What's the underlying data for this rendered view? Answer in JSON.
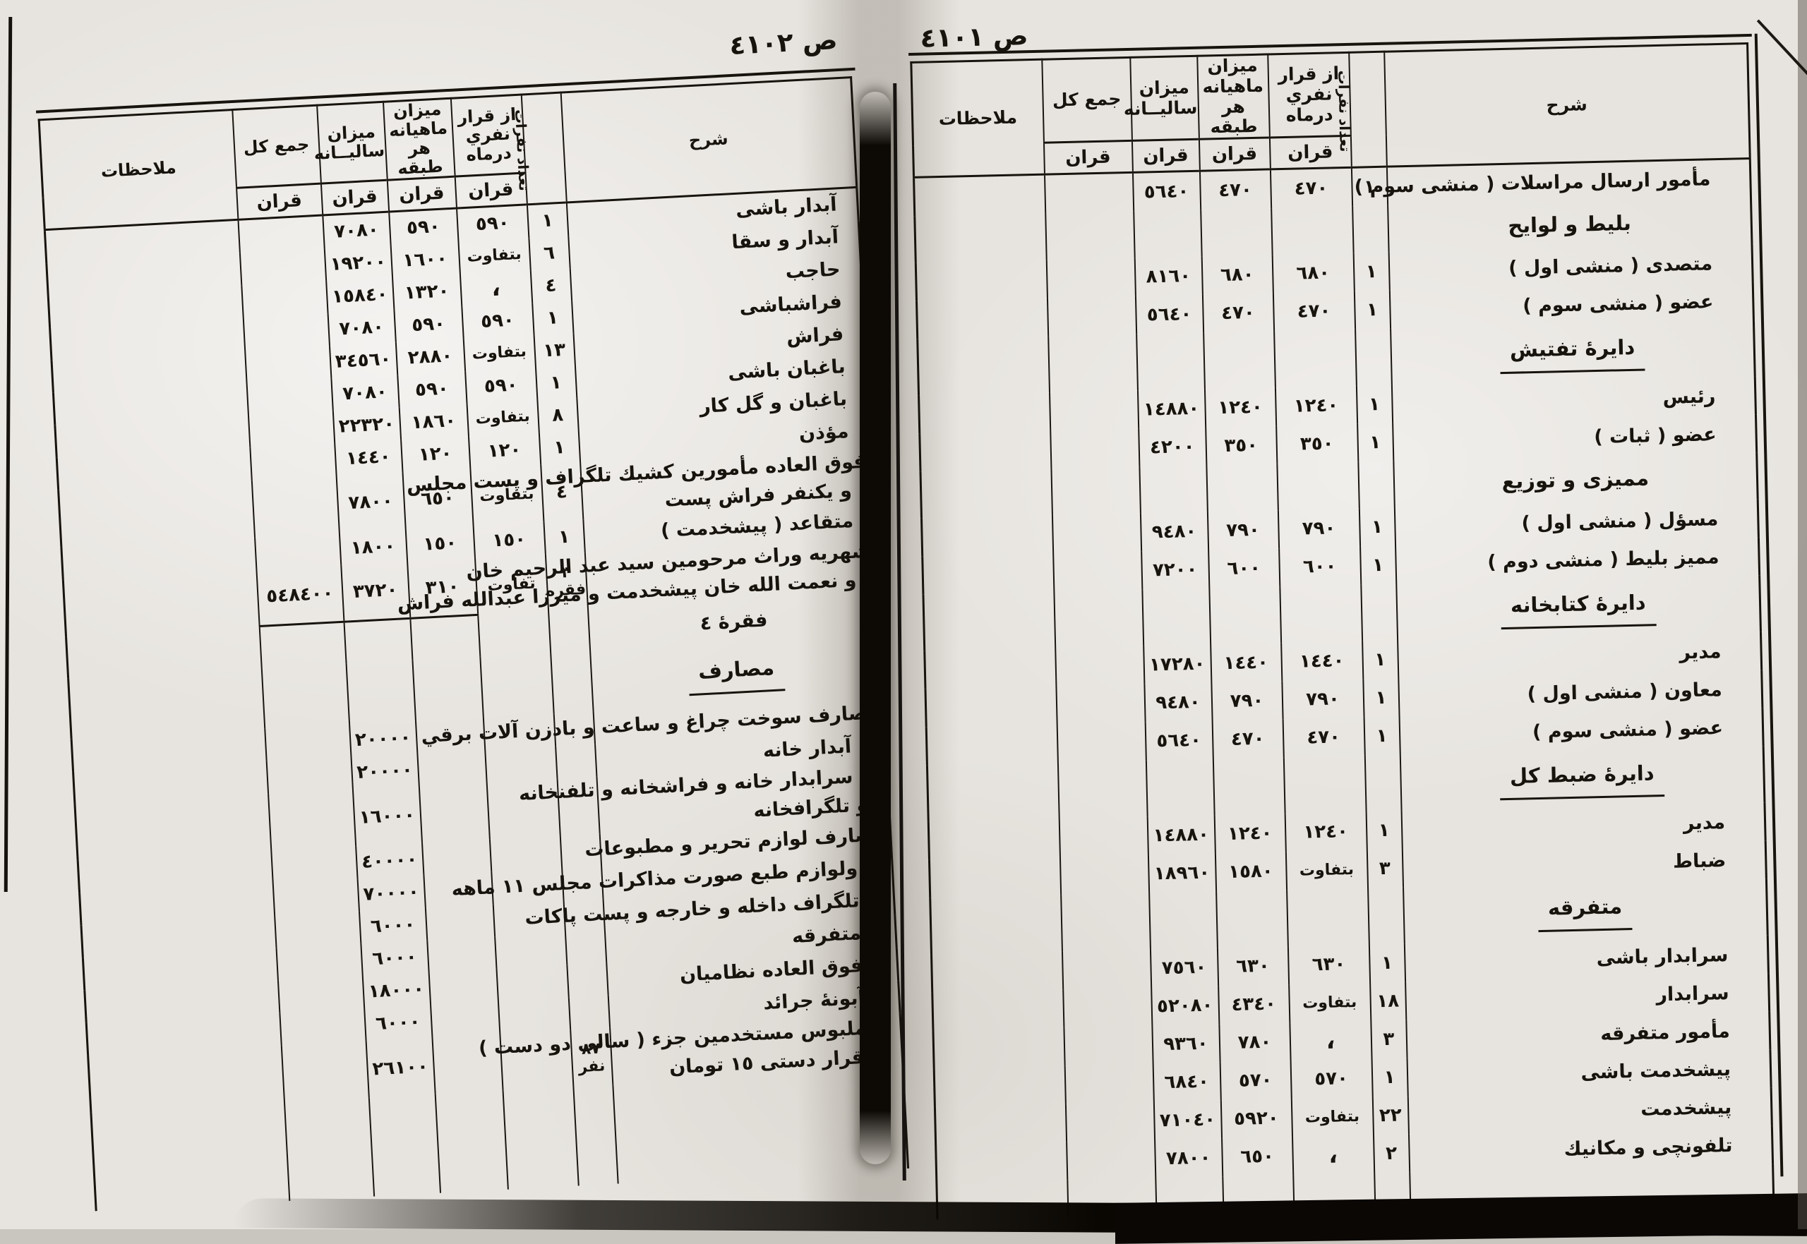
{
  "document": {
    "left_page_label": "ص ٤١٠٢",
    "right_page_label": "ص ٤١٠١"
  },
  "headers": {
    "desc": "شرح",
    "count": "تعداد نفرات",
    "per_person": "از قرار\nنفري درماه",
    "monthly": "ميزان ماهيانه\nهر طبقه",
    "annual": "ميزان\nساليــانه",
    "total": "جمع كل",
    "notes": "ملاحظات",
    "unit": "قران"
  },
  "page_right": {
    "rows": [
      {
        "type": "entry",
        "desc": "مأمور ارسال مراسلات ( منشى سوم )",
        "count": "١",
        "per": "٤٧٠",
        "monthly": "٤٧٠",
        "annual": "٥٦٤٠"
      },
      {
        "type": "section",
        "desc": "بليط و لوايح"
      },
      {
        "type": "entry",
        "desc": "متصدى ( منشى اول )",
        "count": "١",
        "per": "٦٨٠",
        "monthly": "٦٨٠",
        "annual": "٨١٦٠"
      },
      {
        "type": "entry",
        "desc": "عضو ( منشى سوم )",
        "count": "١",
        "per": "٤٧٠",
        "monthly": "٤٧٠",
        "annual": "٥٦٤٠"
      },
      {
        "type": "section",
        "desc": "دايرهٔ تفتيش",
        "underline": true
      },
      {
        "type": "entry",
        "desc": "رئيس",
        "count": "١",
        "per": "١٢٤٠",
        "monthly": "١٢٤٠",
        "annual": "١٤٨٨٠"
      },
      {
        "type": "entry",
        "desc": "عضو ( ثبات )",
        "count": "١",
        "per": "٣٥٠",
        "monthly": "٣٥٠",
        "annual": "٤٢٠٠"
      },
      {
        "type": "section",
        "desc": "مميزى و توزيع"
      },
      {
        "type": "entry",
        "desc": "مسؤل ( منشى اول )",
        "count": "١",
        "per": "٧٩٠",
        "monthly": "٧٩٠",
        "annual": "٩٤٨٠"
      },
      {
        "type": "entry",
        "desc": "مميز بليط ( منشى دوم )",
        "count": "١",
        "per": "٦٠٠",
        "monthly": "٦٠٠",
        "annual": "٧٢٠٠"
      },
      {
        "type": "section",
        "desc": "دايرهٔ كتابخانه",
        "underline": true
      },
      {
        "type": "entry",
        "desc": "مدير",
        "count": "١",
        "per": "١٤٤٠",
        "monthly": "١٤٤٠",
        "annual": "١٧٢٨٠"
      },
      {
        "type": "entry",
        "desc": "معاون ( منشى اول )",
        "count": "١",
        "per": "٧٩٠",
        "monthly": "٧٩٠",
        "annual": "٩٤٨٠"
      },
      {
        "type": "entry",
        "desc": "عضو ( منشى سوم )",
        "count": "١",
        "per": "٤٧٠",
        "monthly": "٤٧٠",
        "annual": "٥٦٤٠"
      },
      {
        "type": "section",
        "desc": "دايرهٔ ضبط كل",
        "underline": true
      },
      {
        "type": "entry",
        "desc": "مدير",
        "count": "١",
        "per": "١٢٤٠",
        "monthly": "١٢٤٠",
        "annual": "١٤٨٨٠"
      },
      {
        "type": "entry",
        "desc": "ضباط",
        "count": "٣",
        "per": "بتفاوت",
        "monthly": "١٥٨٠",
        "annual": "١٨٩٦٠"
      },
      {
        "type": "section",
        "desc": "متفرقه",
        "underline": true
      },
      {
        "type": "entry",
        "desc": "سرابدار باشى",
        "count": "١",
        "per": "٦٣٠",
        "monthly": "٦٣٠",
        "annual": "٧٥٦٠"
      },
      {
        "type": "entry",
        "desc": "سرابدار",
        "count": "١٨",
        "per": "بتفاوت",
        "monthly": "٤٣٤٠",
        "annual": "٥٢٠٨٠"
      },
      {
        "type": "entry",
        "desc": "مأمور متفرقه",
        "count": "٣",
        "per": "،",
        "monthly": "٧٨٠",
        "annual": "٩٣٦٠"
      },
      {
        "type": "entry",
        "desc": "پيشخدمت باشى",
        "count": "١",
        "per": "٥٧٠",
        "monthly": "٥٧٠",
        "annual": "٦٨٤٠"
      },
      {
        "type": "entry",
        "desc": "پيشخدمت",
        "count": "٢٢",
        "per": "بتفاوت",
        "monthly": "٥٩٢٠",
        "annual": "٧١٠٤٠"
      },
      {
        "type": "entry",
        "desc": "تلفونچى و مكانيك",
        "count": "٢",
        "per": "،",
        "monthly": "٦٥٠",
        "annual": "٧٨٠٠"
      },
      {
        "type": "filler"
      }
    ]
  },
  "page_left": {
    "rows": [
      {
        "type": "entry",
        "desc": "آبدار باشى",
        "count": "١",
        "per": "٥٩٠",
        "monthly": "٥٩٠",
        "annual": "٧٠٨٠"
      },
      {
        "type": "entry",
        "desc": "آبدار و سقا",
        "count": "٦",
        "per": "بتفاوت",
        "monthly": "١٦٠٠",
        "annual": "١٩٢٠٠"
      },
      {
        "type": "entry",
        "desc": "حاجب",
        "count": "٤",
        "per": "،",
        "monthly": "١٣٢٠",
        "annual": "١٥٨٤٠"
      },
      {
        "type": "entry",
        "desc": "فراشباشى",
        "count": "١",
        "per": "٥٩٠",
        "monthly": "٥٩٠",
        "annual": "٧٠٨٠"
      },
      {
        "type": "entry",
        "desc": "فراش",
        "count": "١٣",
        "per": "بتفاوت",
        "monthly": "٢٨٨٠",
        "annual": "٣٤٥٦٠"
      },
      {
        "type": "entry",
        "desc": "باغبان باشى",
        "count": "١",
        "per": "٥٩٠",
        "monthly": "٥٩٠",
        "annual": "٧٠٨٠"
      },
      {
        "type": "entry",
        "desc": "باغبان و گل كار",
        "count": "٨",
        "per": "بتفاوت",
        "monthly": "١٨٦٠",
        "annual": "٢٢٣٢٠"
      },
      {
        "type": "entry",
        "desc": "مؤذن",
        "count": "١",
        "per": "١٢٠",
        "monthly": "١٢٠",
        "annual": "١٤٤٠"
      },
      {
        "type": "entry",
        "desc": "فوق العاده مأمورين كشيك تلگراف و پست مجلس",
        "desc2": "و يكنفر فراش پست",
        "flush": true,
        "count": "٤",
        "per": "بتفاوت",
        "monthly": "٦٥٠",
        "annual": "٧٨٠٠"
      },
      {
        "type": "entry",
        "desc": "متقاعد ( پيشخدمت )",
        "count": "١",
        "per": "١٥٠",
        "monthly": "١٥٠",
        "annual": "١٨٠٠"
      },
      {
        "type": "entry",
        "desc": "شهريه وراث مرحومين سيد عبد الرحيم خان",
        "desc2": "و نعمت الله خان پيشخدمت و ميرزا عبدالله فراش",
        "flush": true,
        "count": "٣ فقره",
        "per": "تفاوت",
        "monthly": "٣١٠",
        "annual": "٣٧٢٠",
        "total": "٥٤٨٤٠٠",
        "sumline": true
      },
      {
        "type": "center",
        "desc": "فقرهٔ ٤"
      },
      {
        "type": "section",
        "desc": "مصارف",
        "underline": true
      },
      {
        "type": "entry",
        "desc": "مصارف سوخت چراغ و ساعت و بادزن آلات برقي",
        "flush": true,
        "annual": "٢٠٠٠٠"
      },
      {
        "type": "entry",
        "desc": "،  آبدار خانه",
        "annual": "٢٠٠٠٠"
      },
      {
        "type": "entry",
        "desc": "،  سرابدار خانه و فراشخانه و تلفنخانه",
        "desc2": "و تلگرافخانه",
        "annual": "١٦٠٠٠"
      },
      {
        "type": "entry",
        "desc": "مصارف لوازم تحرير و مطبوعات",
        "flush": true,
        "annual": "٤٠٠٠٠"
      },
      {
        "type": "entry",
        "desc": "،  ولوازم طبع صورت مذاكرات مجلس ١١ ماهه",
        "annual": "٧٠٠٠٠"
      },
      {
        "type": "entry",
        "desc": "،  تلگراف داخله و خارجه و پست پاكات",
        "annual": "٦٠٠٠"
      },
      {
        "type": "entry",
        "desc": "،  متفرقه",
        "annual": "٦٠٠٠"
      },
      {
        "type": "entry",
        "desc": "،  فوق العاده نظاميان",
        "annual": "١٨٠٠٠"
      },
      {
        "type": "entry",
        "desc": "،  آبونهٔ جرائد",
        "annual": "٦٠٠٠"
      },
      {
        "type": "entry",
        "desc": "،  ملبوس مستخدمين جزء ( سالى دو دست )",
        "desc2": "ازقرار دستى ١٥ تومان",
        "count": "٨٧ نفر",
        "annual": "٢٦١٠٠"
      },
      {
        "type": "filler"
      }
    ]
  }
}
